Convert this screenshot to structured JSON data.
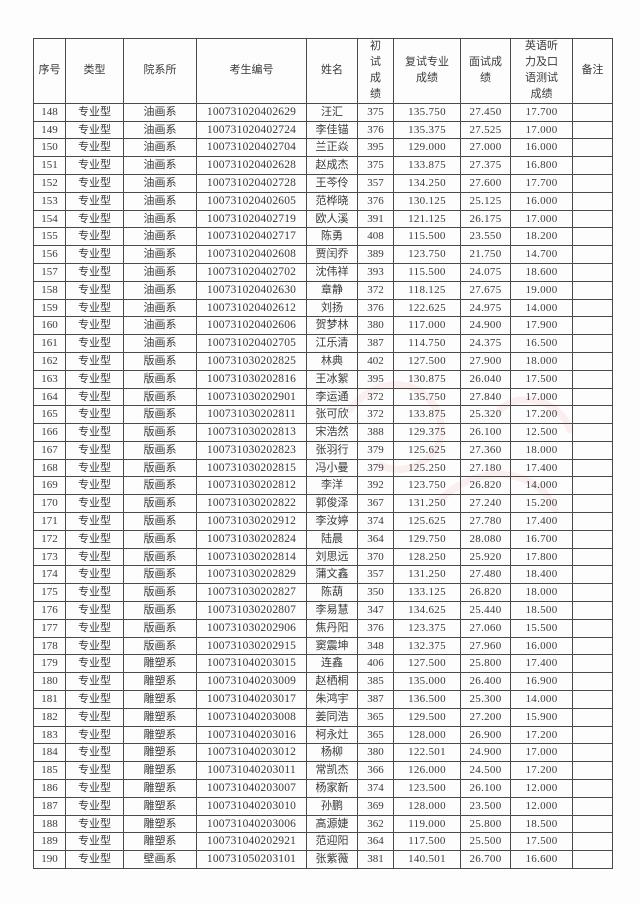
{
  "table": {
    "columns": [
      "序号",
      "类型",
      "院系所",
      "考生编号",
      "姓名",
      "初试成绩",
      "复试专业成绩",
      "面试成绩",
      "英语听力及口语测试成绩",
      "备注"
    ],
    "column_keys": [
      "index",
      "type",
      "department",
      "candidate-no",
      "name",
      "initial-score",
      "retest-major-score",
      "interview-score",
      "english-listening-speaking-score",
      "remarks"
    ],
    "rows": [
      [
        "148",
        "专业型",
        "油画系",
        "100731020402629",
        "汪汇",
        "375",
        "135.750",
        "27.450",
        "17.700",
        ""
      ],
      [
        "149",
        "专业型",
        "油画系",
        "100731020402724",
        "李佳锚",
        "376",
        "135.375",
        "27.525",
        "17.000",
        ""
      ],
      [
        "150",
        "专业型",
        "油画系",
        "100731020402704",
        "兰正焱",
        "395",
        "129.000",
        "27.000",
        "16.000",
        ""
      ],
      [
        "151",
        "专业型",
        "油画系",
        "100731020402628",
        "赵成杰",
        "375",
        "133.875",
        "27.375",
        "16.800",
        ""
      ],
      [
        "152",
        "专业型",
        "油画系",
        "100731020402728",
        "王芩伶",
        "357",
        "134.250",
        "27.600",
        "17.700",
        ""
      ],
      [
        "153",
        "专业型",
        "油画系",
        "100731020402605",
        "范桦晓",
        "376",
        "130.125",
        "25.125",
        "16.000",
        ""
      ],
      [
        "154",
        "专业型",
        "油画系",
        "100731020402719",
        "欧人溪",
        "391",
        "121.125",
        "26.175",
        "17.000",
        ""
      ],
      [
        "155",
        "专业型",
        "油画系",
        "100731020402717",
        "陈勇",
        "408",
        "115.500",
        "23.550",
        "18.200",
        ""
      ],
      [
        "156",
        "专业型",
        "油画系",
        "100731020402608",
        "贾闰乔",
        "389",
        "123.750",
        "21.750",
        "14.700",
        ""
      ],
      [
        "157",
        "专业型",
        "油画系",
        "100731020402702",
        "沈伟祥",
        "393",
        "115.500",
        "24.075",
        "18.600",
        ""
      ],
      [
        "158",
        "专业型",
        "油画系",
        "100731020402630",
        "章静",
        "372",
        "118.125",
        "27.675",
        "19.000",
        ""
      ],
      [
        "159",
        "专业型",
        "油画系",
        "100731020402612",
        "刘扬",
        "376",
        "122.625",
        "24.975",
        "14.000",
        ""
      ],
      [
        "160",
        "专业型",
        "油画系",
        "100731020402606",
        "贺梦林",
        "380",
        "117.000",
        "24.900",
        "17.900",
        ""
      ],
      [
        "161",
        "专业型",
        "油画系",
        "100731020402705",
        "江乐清",
        "387",
        "114.750",
        "24.375",
        "16.500",
        ""
      ],
      [
        "162",
        "专业型",
        "版画系",
        "100731030202825",
        "林典",
        "402",
        "127.500",
        "27.900",
        "18.000",
        ""
      ],
      [
        "163",
        "专业型",
        "版画系",
        "100731030202816",
        "王冰絮",
        "395",
        "130.875",
        "26.040",
        "17.500",
        ""
      ],
      [
        "164",
        "专业型",
        "版画系",
        "100731030202901",
        "李运通",
        "372",
        "135.750",
        "27.840",
        "17.000",
        ""
      ],
      [
        "165",
        "专业型",
        "版画系",
        "100731030202811",
        "张可欣",
        "372",
        "133.875",
        "25.320",
        "17.200",
        ""
      ],
      [
        "166",
        "专业型",
        "版画系",
        "100731030202813",
        "宋浩然",
        "388",
        "129.375",
        "26.100",
        "12.500",
        ""
      ],
      [
        "167",
        "专业型",
        "版画系",
        "100731030202823",
        "张羽行",
        "379",
        "125.625",
        "27.360",
        "18.000",
        ""
      ],
      [
        "168",
        "专业型",
        "版画系",
        "100731030202815",
        "冯小曼",
        "379",
        "125.250",
        "27.180",
        "17.400",
        ""
      ],
      [
        "169",
        "专业型",
        "版画系",
        "100731030202812",
        "李洋",
        "392",
        "123.750",
        "26.820",
        "14.000",
        ""
      ],
      [
        "170",
        "专业型",
        "版画系",
        "100731030202822",
        "郭俊泽",
        "367",
        "131.250",
        "27.240",
        "15.200",
        ""
      ],
      [
        "171",
        "专业型",
        "版画系",
        "100731030202912",
        "李汝婷",
        "374",
        "125.625",
        "27.780",
        "17.400",
        ""
      ],
      [
        "172",
        "专业型",
        "版画系",
        "100731030202824",
        "陆晨",
        "364",
        "129.750",
        "28.080",
        "16.700",
        ""
      ],
      [
        "173",
        "专业型",
        "版画系",
        "100731030202814",
        "刘思远",
        "370",
        "128.250",
        "25.920",
        "17.800",
        ""
      ],
      [
        "174",
        "专业型",
        "版画系",
        "100731030202829",
        "蒲文鑫",
        "357",
        "131.250",
        "27.480",
        "18.400",
        ""
      ],
      [
        "175",
        "专业型",
        "版画系",
        "100731030202827",
        "陈葫",
        "350",
        "133.125",
        "26.820",
        "18.000",
        ""
      ],
      [
        "176",
        "专业型",
        "版画系",
        "100731030202807",
        "李易慧",
        "347",
        "134.625",
        "25.440",
        "18.500",
        ""
      ],
      [
        "177",
        "专业型",
        "版画系",
        "100731030202906",
        "焦丹阳",
        "376",
        "123.375",
        "27.060",
        "15.500",
        ""
      ],
      [
        "178",
        "专业型",
        "版画系",
        "100731030202915",
        "窦震坤",
        "348",
        "132.375",
        "27.960",
        "16.000",
        ""
      ],
      [
        "179",
        "专业型",
        "雕塑系",
        "100731040203015",
        "连鑫",
        "406",
        "127.500",
        "25.800",
        "17.400",
        ""
      ],
      [
        "180",
        "专业型",
        "雕塑系",
        "100731040203009",
        "赵栖桐",
        "385",
        "135.000",
        "26.400",
        "16.900",
        ""
      ],
      [
        "181",
        "专业型",
        "雕塑系",
        "100731040203017",
        "朱鸿宇",
        "387",
        "136.500",
        "25.300",
        "14.000",
        ""
      ],
      [
        "182",
        "专业型",
        "雕塑系",
        "100731040203008",
        "姜同浩",
        "365",
        "129.500",
        "27.200",
        "15.900",
        ""
      ],
      [
        "183",
        "专业型",
        "雕塑系",
        "100731040203016",
        "柯永灶",
        "365",
        "128.000",
        "26.900",
        "17.200",
        ""
      ],
      [
        "184",
        "专业型",
        "雕塑系",
        "100731040203012",
        "杨柳",
        "380",
        "122.501",
        "24.900",
        "17.000",
        ""
      ],
      [
        "185",
        "专业型",
        "雕塑系",
        "100731040203011",
        "常凯杰",
        "366",
        "126.000",
        "24.500",
        "17.200",
        ""
      ],
      [
        "186",
        "专业型",
        "雕塑系",
        "100731040203007",
        "杨家新",
        "374",
        "123.500",
        "26.100",
        "12.000",
        ""
      ],
      [
        "187",
        "专业型",
        "雕塑系",
        "100731040203010",
        "孙鹏",
        "369",
        "128.000",
        "23.500",
        "12.000",
        ""
      ],
      [
        "188",
        "专业型",
        "雕塑系",
        "100731040203006",
        "高源婕",
        "362",
        "119.000",
        "25.800",
        "18.500",
        ""
      ],
      [
        "189",
        "专业型",
        "雕塑系",
        "100731040202921",
        "范迎阳",
        "364",
        "117.500",
        "25.500",
        "17.500",
        ""
      ],
      [
        "190",
        "专业型",
        "壁画系",
        "100731050203101",
        "张紫薇",
        "381",
        "140.501",
        "26.700",
        "16.600",
        ""
      ]
    ]
  },
  "colors": {
    "border": "#4a4a4a",
    "text": "#3a3a3a",
    "background": "#ffffff",
    "watermark": "#e8a0a0"
  }
}
